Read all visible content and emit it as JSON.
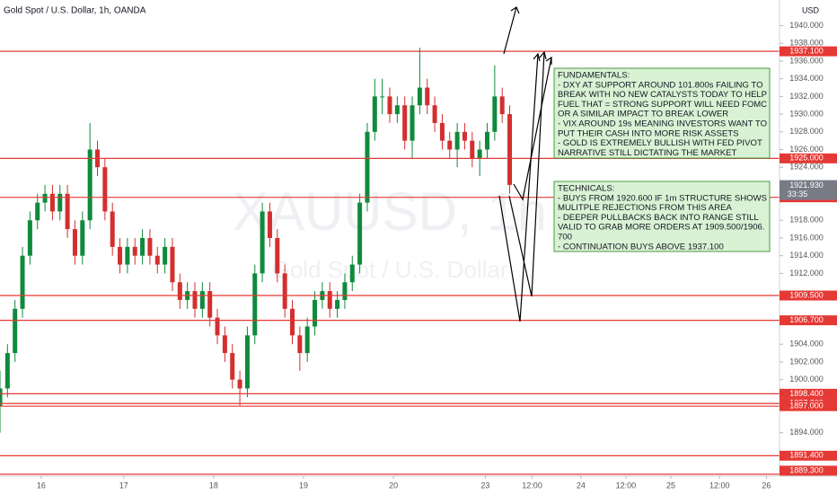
{
  "chart_data": {
    "type": "candlestick",
    "title": "Gold Spot / U.S. Dollar, 1h, OANDA",
    "y_axis_label": "USD",
    "watermark": [
      "XAUUSD, 1h",
      "Gold Spot / U.S. Dollar"
    ],
    "up_color": "#0f8a3c",
    "down_color": "#d32f2f",
    "level_color": "#e53935",
    "x": [
      0,
      2,
      4,
      6,
      8,
      10,
      12,
      14,
      16,
      18,
      20,
      22,
      24,
      26,
      28,
      30,
      32,
      34,
      36,
      38,
      40,
      42,
      44,
      46,
      48,
      50,
      52,
      54,
      56,
      58,
      60,
      62,
      64,
      66,
      68,
      70,
      72,
      74,
      76,
      78,
      80,
      82,
      84,
      86,
      88,
      90,
      92,
      94,
      96,
      98,
      100,
      102,
      104,
      106,
      108,
      110,
      112,
      114,
      116,
      118,
      120,
      122,
      124,
      126,
      128,
      130,
      132,
      134,
      136
    ],
    "series": [
      {
        "name": "XAUUSD",
        "open": [
          1897,
          1899,
          1903,
          1908,
          1914,
          1918,
          1920,
          1921,
          1919,
          1921,
          1917,
          1914,
          1918,
          1926,
          1924,
          1919,
          1915,
          1913,
          1915,
          1914,
          1916,
          1914,
          1913,
          1915,
          1911,
          1909,
          1910,
          1908,
          1910,
          1907,
          1905,
          1903,
          1900,
          1899,
          1905,
          1912,
          1919,
          1916,
          1912,
          1908,
          1905,
          1903,
          1906,
          1909,
          1910,
          1908,
          1909,
          1911,
          1913,
          1920,
          1928,
          1932,
          1932,
          1930,
          1931,
          1927,
          1931,
          1933,
          1931,
          1929,
          1927,
          1926,
          1928,
          1927,
          1925,
          1926,
          1928,
          1932,
          1930
        ],
        "high": [
          1901,
          1904,
          1909,
          1915,
          1919,
          1921,
          1922,
          1922,
          1922,
          1922,
          1918,
          1919,
          1929,
          1927,
          1925,
          1920,
          1916,
          1916,
          1916,
          1917,
          1917,
          1915,
          1916,
          1916,
          1912,
          1911,
          1911,
          1911,
          1911,
          1908,
          1906,
          1904,
          1901,
          1906,
          1913,
          1920,
          1920,
          1917,
          1913,
          1909,
          1906,
          1907,
          1910,
          1911,
          1911,
          1910,
          1912,
          1914,
          1921,
          1929,
          1934,
          1934,
          1933,
          1932,
          1932,
          1932,
          1937.5,
          1934,
          1932,
          1930,
          1928,
          1929,
          1929,
          1928,
          1927,
          1929,
          1935.5,
          1933,
          1931
        ],
        "low": [
          1894,
          1898,
          1902,
          1907,
          1913,
          1917,
          1919,
          1918,
          1918,
          1916,
          1913,
          1913,
          1917,
          1923,
          1918,
          1914,
          1912,
          1912,
          1913,
          1913,
          1913,
          1912,
          1912,
          1910,
          1908,
          1908,
          1907,
          1907,
          1906,
          1904,
          1902,
          1899,
          1897,
          1898,
          1904,
          1911,
          1915,
          1911,
          1907,
          1904,
          1901,
          1902,
          1905,
          1908,
          1907,
          1907,
          1908,
          1910,
          1912,
          1919,
          1927,
          1930,
          1929,
          1929,
          1926,
          1925,
          1930,
          1930,
          1928,
          1926,
          1925,
          1924,
          1926,
          1924,
          1923,
          1925,
          1927,
          1929,
          1921
        ],
        "close": [
          1899,
          1903,
          1908,
          1914,
          1918,
          1920,
          1921,
          1919,
          1921,
          1917,
          1914,
          1918,
          1926,
          1924,
          1919,
          1915,
          1913,
          1915,
          1914,
          1916,
          1914,
          1913,
          1915,
          1911,
          1909,
          1910,
          1908,
          1910,
          1907,
          1905,
          1903,
          1900,
          1899,
          1905,
          1912,
          1919,
          1916,
          1912,
          1908,
          1905,
          1903,
          1906,
          1909,
          1910,
          1908,
          1909,
          1911,
          1913,
          1920,
          1928,
          1932,
          1932,
          1930,
          1931,
          1927,
          1931,
          1933,
          1931,
          1929,
          1927,
          1926,
          1928,
          1927,
          1925,
          1926,
          1928,
          1932,
          1930,
          1922
        ]
      }
    ],
    "xlim": [
      0,
      208
    ],
    "xticks": [
      {
        "value": 11,
        "label": "16"
      },
      {
        "value": 33,
        "label": "17"
      },
      {
        "value": 57,
        "label": "18"
      },
      {
        "value": 81,
        "label": "19"
      },
      {
        "value": 105,
        "label": "20"
      },
      {
        "value": 129.5,
        "label": "23"
      },
      {
        "value": 142,
        "label": "12:00"
      },
      {
        "value": 155,
        "label": "24"
      },
      {
        "value": 167,
        "label": "12:00"
      },
      {
        "value": 179,
        "label": "25"
      },
      {
        "value": 192,
        "label": "12:00"
      },
      {
        "value": 204.5,
        "label": "26"
      }
    ],
    "ylim": [
      1889.1,
      1942.9
    ],
    "yticks": [
      {
        "value": 1940,
        "label": "1940.000"
      },
      {
        "value": 1938,
        "label": "1938.000"
      },
      {
        "value": 1936,
        "label": "1936.000"
      },
      {
        "value": 1934,
        "label": "1934.000"
      },
      {
        "value": 1932,
        "label": "1932.000"
      },
      {
        "value": 1930,
        "label": "1930.000"
      },
      {
        "value": 1928,
        "label": "1928.000"
      },
      {
        "value": 1926,
        "label": "1926.000"
      },
      {
        "value": 1924,
        "label": "1924.000"
      },
      {
        "value": 1918,
        "label": "1918.000"
      },
      {
        "value": 1916,
        "label": "1916.000"
      },
      {
        "value": 1914,
        "label": "1914.000"
      },
      {
        "value": 1912,
        "label": "1912.000"
      },
      {
        "value": 1904,
        "label": "1904.000"
      },
      {
        "value": 1902,
        "label": "1902.000"
      },
      {
        "value": 1900,
        "label": "1900.000"
      },
      {
        "value": 1894,
        "label": "1894.000"
      }
    ],
    "levels": [
      {
        "value": 1937.1,
        "label": "1937.100"
      },
      {
        "value": 1925,
        "label": "1925.000"
      },
      {
        "value": 1920.6,
        "label": "1920.600"
      },
      {
        "value": 1909.5,
        "label": "1909.500"
      },
      {
        "value": 1906.7,
        "label": "1906.700"
      },
      {
        "value": 1898.4,
        "label": "1898.400"
      },
      {
        "value": 1897.3,
        "label": "1897.300"
      },
      {
        "value": 1897,
        "label": "1897.000"
      },
      {
        "value": 1891.4,
        "label": "1891.400"
      },
      {
        "value": 1889.3,
        "label": "1889.300"
      }
    ],
    "current_price": {
      "value": 1921.93,
      "label": "1921.930",
      "countdown": "33:35"
    },
    "fundamentals": [
      "FUNDAMENTALS:",
      "- DXY AT SUPPORT AROUND 101.800s FAILING TO",
      "BREAK WITH NO NEW CATALYSTS TODAY TO HELP",
      "FUEL THAT = STRONG SUPPORT WILL NEED FOMC",
      "OR A SIMILAR IMPACT TO BREAK LOWER",
      "- VIX AROUND 19s MEANING INVESTORS WANT TO",
      "PUT THEIR CASH INTO MORE RISK ASSETS",
      "- GOLD IS EXTREMELY BULLISH WITH FED PIVOT",
      "NARRATIVE STILL DICTATING THE MARKET"
    ],
    "technicals": [
      "TECHNICALS:",
      "- BUYS FROM 1920.600 IF 1m STRUCTURE SHOWS",
      "MULITPLE REJECTIONS FROM THIS AREA",
      "- DEEPER PULLBACKS BACK INTO RANGE STILL",
      "VALID TO GRAB MORE ORDERS AT 1909.500/1906.",
      "700",
      "- CONTINUATION BUYS ABOVE 1937.100"
    ]
  }
}
